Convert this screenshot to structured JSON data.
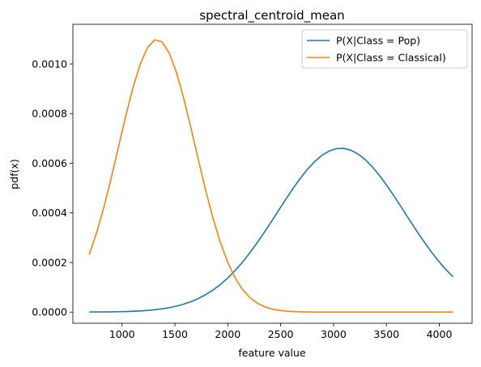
{
  "chart_data": {
    "type": "line",
    "title": "spectral_centroid_mean",
    "xlabel": "feature value",
    "ylabel": "pdf(x)",
    "xlim": [
      535,
      4310
    ],
    "ylim": [
      -4.5e-05,
      0.00116
    ],
    "xticks": [
      1000,
      1500,
      2000,
      2500,
      3000,
      3500,
      4000
    ],
    "xtick_labels": [
      "1000",
      "1500",
      "2000",
      "2500",
      "3000",
      "3500",
      "4000"
    ],
    "yticks": [
      0,
      0.0002,
      0.0004,
      0.0006,
      0.0008,
      0.001
    ],
    "ytick_labels": [
      "0.0000",
      "0.0002",
      "0.0004",
      "0.0006",
      "0.0008",
      "0.0010"
    ],
    "grid": false,
    "legend_position": "upper right",
    "series": [
      {
        "name": "P(X|Class = Pop)",
        "color": "#1f77b4",
        "distribution": "normal",
        "mean": 3070,
        "std": 604,
        "x_range": [
          690,
          4130
        ]
      },
      {
        "name": "P(X|Class = Classical)",
        "color": "#ff7f0e",
        "distribution": "normal",
        "mean": 1330,
        "std": 363,
        "x_range": [
          690,
          4130
        ]
      }
    ]
  }
}
